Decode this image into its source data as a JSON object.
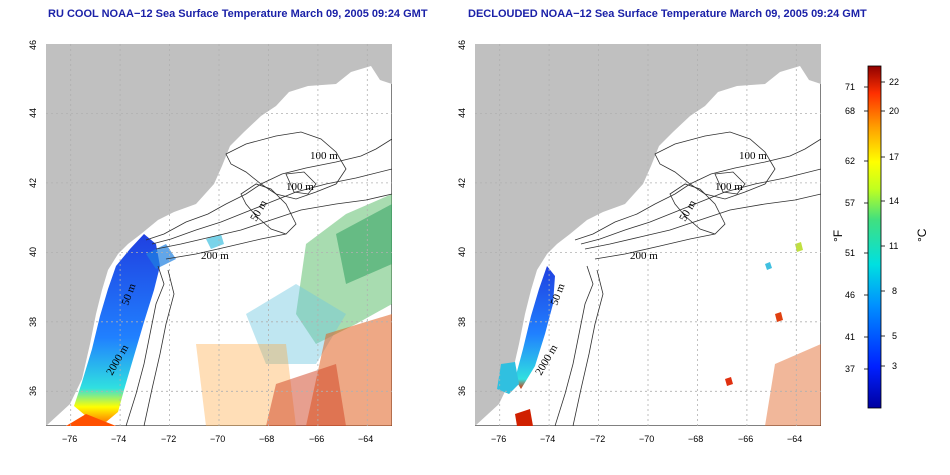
{
  "panels": {
    "left": {
      "title": "RU COOL NOAA−12 Sea Surface Temperature March 09, 2005 09:24 GMT"
    },
    "right": {
      "title": "DECLOUDED NOAA−12 Sea Surface Temperature March 09, 2005 09:24 GMT"
    }
  },
  "map": {
    "lon_range": [
      -77.0,
      -63.0
    ],
    "lat_range": [
      35.0,
      46.0
    ],
    "lon_ticks": [
      -76,
      -74,
      -72,
      -70,
      -68,
      -66,
      -64
    ],
    "lat_ticks": [
      36,
      38,
      40,
      42,
      44,
      46
    ],
    "lon_tick_labels": [
      "−76",
      "−74",
      "−72",
      "−70",
      "−68",
      "−66",
      "−64"
    ],
    "lat_tick_labels": [
      "36",
      "38",
      "40",
      "42",
      "44",
      "46"
    ],
    "contour_labels": [
      "100 m",
      "100 m",
      "50 m",
      "200 m",
      "50 m",
      "2000 m"
    ],
    "colors": {
      "land": "#c0c0c0",
      "grid": "#b0b0b0"
    }
  },
  "colorbar": {
    "fahrenheit_label": "°F",
    "celsius_label": "°C",
    "fahrenheit_ticks": [
      "71",
      "68",
      "62",
      "57",
      "51",
      "46",
      "41",
      "37"
    ],
    "celsius_ticks": [
      "22",
      "20",
      "17",
      "14",
      "11",
      "8",
      "5",
      "3"
    ],
    "celsius_range": [
      0,
      23
    ]
  }
}
